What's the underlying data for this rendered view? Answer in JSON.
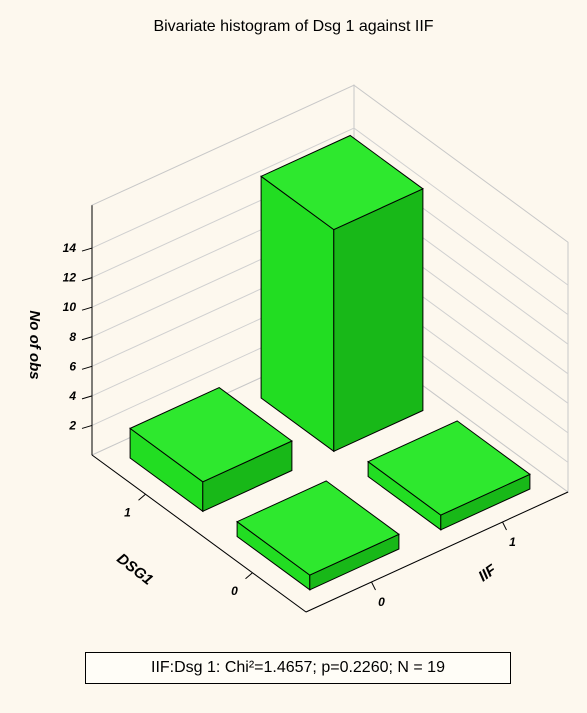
{
  "chart_data": {
    "type": "bar3d",
    "title": "Bivariate histogram of Dsg 1 against IIF",
    "zlabel": "No of obs",
    "xlabel": "IIF",
    "ylabel": "DSG1",
    "x_categories": [
      "0",
      "1"
    ],
    "y_categories": [
      "0",
      "1"
    ],
    "z_ticks": [
      "2",
      "4",
      "6",
      "8",
      "10",
      "12",
      "14"
    ],
    "zlim": [
      0,
      14
    ],
    "bars": [
      {
        "x": "0",
        "y": "0",
        "count": 1
      },
      {
        "x": "1",
        "y": "0",
        "count": 1
      },
      {
        "x": "0",
        "y": "1",
        "count": 2
      },
      {
        "x": "1",
        "y": "1",
        "count": 15
      }
    ],
    "bar_color": "#22dd22",
    "stats_text": "IIF:Dsg 1: Chi²=1.4657; p=0.2260; N = 19"
  }
}
